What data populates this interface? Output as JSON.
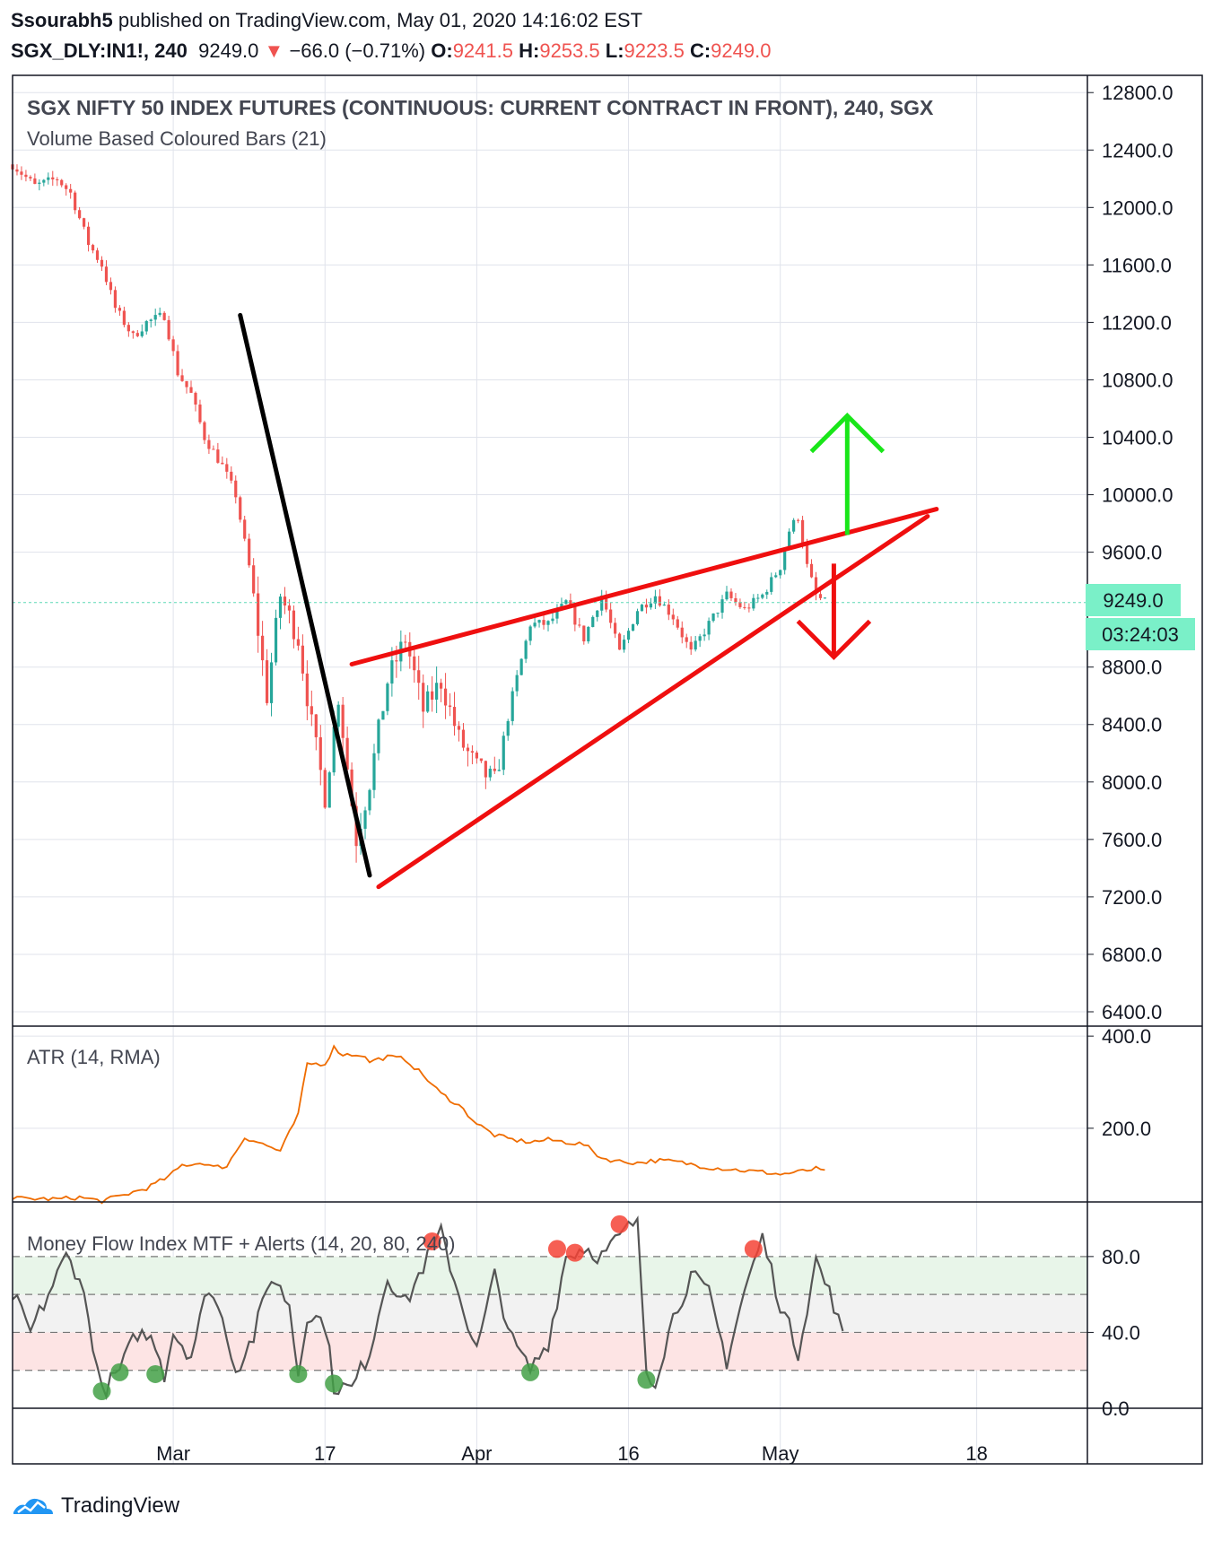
{
  "header": {
    "author": "Ssourabh5",
    "published_text": "published on TradingView.com, May 01, 2020 14:16:02 EST",
    "symbol": "SGX_DLY:IN1!, 240",
    "last": "9249.0",
    "change": "−66.0 (−0.71%)",
    "o_label": "O:",
    "o_value": "9241.5",
    "h_label": "H:",
    "h_value": "9253.5",
    "l_label": "L:",
    "l_value": "9223.5",
    "c_label": "C:",
    "c_value": "9249.0"
  },
  "footer": {
    "brand": "TradingView"
  },
  "colors": {
    "up_candle": "#26a69a",
    "down_candle": "#ef5350",
    "wedge": "#ef0f0f",
    "trendline": "#000000",
    "arrow_up": "#19e619",
    "arrow_down": "#ef0f0f",
    "atr": "#ef6c00",
    "mfi": "#555555",
    "grid": "#e0e3eb"
  },
  "chart_data": [
    {
      "type": "candlestick",
      "title": "SGX NIFTY 50 INDEX FUTURES (CONTINUOUS: CURRENT CONTRACT IN FRONT), 240, SGX",
      "subtitle": "Volume Based Coloured Bars (21)",
      "x_tick_labels": [
        "Mar",
        "17",
        "Apr",
        "16",
        "May",
        "18"
      ],
      "y_ticks": [
        12800,
        12400,
        12000,
        11600,
        11200,
        10800,
        10400,
        10000,
        9600,
        8800,
        8400,
        8000,
        7600,
        7200,
        6800,
        6400
      ],
      "y_tick_labels": [
        "12800.0",
        "12400.0",
        "12000.0",
        "11600.0",
        "11200.0",
        "10800.0",
        "10400.0",
        "10000.0",
        "9600.0",
        "8800.0",
        "8400.0",
        "8000.0",
        "7600.0",
        "7200.0",
        "6800.0",
        "6400.0"
      ],
      "ylim": [
        6300,
        12920
      ],
      "price_badge": "9249.0",
      "price_badge_value": 9249,
      "countdown_badge": "03:24:03",
      "close_waypoints": [
        [
          0,
          12300
        ],
        [
          5,
          12150
        ],
        [
          10,
          12200
        ],
        [
          13,
          12100
        ],
        [
          17,
          11750
        ],
        [
          20,
          11600
        ],
        [
          23,
          11300
        ],
        [
          27,
          11100
        ],
        [
          30,
          11200
        ],
        [
          34,
          11250
        ],
        [
          37,
          10850
        ],
        [
          40,
          10700
        ],
        [
          43,
          10400
        ],
        [
          47,
          10200
        ],
        [
          50,
          10000
        ],
        [
          53,
          9500
        ],
        [
          57,
          8600
        ],
        [
          60,
          9300
        ],
        [
          64,
          9000
        ],
        [
          67,
          8400
        ],
        [
          70,
          7900
        ],
        [
          73,
          8600
        ],
        [
          77,
          7600
        ],
        [
          80,
          8000
        ],
        [
          84,
          8700
        ],
        [
          88,
          9000
        ],
        [
          92,
          8500
        ],
        [
          96,
          8700
        ],
        [
          100,
          8300
        ],
        [
          104,
          8100
        ],
        [
          108,
          8000
        ],
        [
          112,
          8600
        ],
        [
          116,
          9100
        ],
        [
          120,
          9100
        ],
        [
          124,
          9250
        ],
        [
          128,
          9000
        ],
        [
          132,
          9300
        ],
        [
          136,
          8900
        ],
        [
          140,
          9200
        ],
        [
          144,
          9300
        ],
        [
          148,
          9150
        ],
        [
          152,
          8900
        ],
        [
          156,
          9100
        ],
        [
          160,
          9300
        ],
        [
          164,
          9200
        ],
        [
          168,
          9300
        ],
        [
          172,
          9500
        ],
        [
          174,
          9750
        ],
        [
          176,
          9850
        ],
        [
          178,
          9500
        ],
        [
          180,
          9300
        ],
        [
          182,
          9249
        ]
      ],
      "drawings": {
        "trendline": {
          "from": [
            51,
            11250
          ],
          "to": [
            80,
            7350
          ]
        },
        "wedge_upper": {
          "from": [
            76,
            8820
          ],
          "to": [
            207,
            9900
          ]
        },
        "wedge_lower": {
          "from": [
            82,
            7270
          ],
          "to": [
            205,
            9850
          ]
        },
        "arrow_up": {
          "x": 187,
          "from": 9720,
          "to": 10550
        },
        "arrow_down": {
          "x": 184,
          "from": 9520,
          "to": 8870
        }
      }
    },
    {
      "type": "line",
      "title": "ATR (14, RMA)",
      "y_ticks": [
        400,
        200
      ],
      "y_tick_labels": [
        "400.0",
        "200.0"
      ],
      "ylim": [
        40,
        410
      ],
      "waypoints": [
        [
          0,
          48
        ],
        [
          10,
          46
        ],
        [
          15,
          50
        ],
        [
          20,
          42
        ],
        [
          25,
          55
        ],
        [
          30,
          70
        ],
        [
          35,
          95
        ],
        [
          38,
          120
        ],
        [
          43,
          125
        ],
        [
          45,
          115
        ],
        [
          48,
          118
        ],
        [
          52,
          180
        ],
        [
          55,
          170
        ],
        [
          60,
          150
        ],
        [
          64,
          230
        ],
        [
          66,
          340
        ],
        [
          70,
          340
        ],
        [
          72,
          375
        ],
        [
          74,
          360
        ],
        [
          78,
          360
        ],
        [
          80,
          345
        ],
        [
          84,
          355
        ],
        [
          88,
          350
        ],
        [
          92,
          315
        ],
        [
          96,
          275
        ],
        [
          100,
          250
        ],
        [
          104,
          210
        ],
        [
          108,
          185
        ],
        [
          112,
          175
        ],
        [
          116,
          170
        ],
        [
          120,
          175
        ],
        [
          124,
          170
        ],
        [
          128,
          165
        ],
        [
          132,
          135
        ],
        [
          136,
          128
        ],
        [
          140,
          125
        ],
        [
          144,
          130
        ],
        [
          148,
          128
        ],
        [
          152,
          122
        ],
        [
          156,
          115
        ],
        [
          160,
          112
        ],
        [
          164,
          108
        ],
        [
          168,
          105
        ],
        [
          172,
          100
        ],
        [
          176,
          105
        ],
        [
          180,
          112
        ],
        [
          182,
          105
        ]
      ]
    },
    {
      "type": "line",
      "title": "Money Flow Index MTF + Alerts (14, 20, 80, 240)",
      "y_ticks": [
        80,
        40,
        0
      ],
      "y_tick_labels": [
        "80.0",
        "40.0",
        "0.0"
      ],
      "ylim": [
        0,
        105
      ],
      "bands": {
        "overbought": 80,
        "upper_mid": 60,
        "lower_mid": 40,
        "oversold": 20
      },
      "waypoints": [
        [
          0,
          60
        ],
        [
          4,
          40
        ],
        [
          8,
          60
        ],
        [
          12,
          80
        ],
        [
          15,
          70
        ],
        [
          18,
          35
        ],
        [
          20,
          8
        ],
        [
          24,
          20
        ],
        [
          28,
          40
        ],
        [
          32,
          35
        ],
        [
          34,
          18
        ],
        [
          36,
          40
        ],
        [
          40,
          28
        ],
        [
          44,
          65
        ],
        [
          48,
          40
        ],
        [
          50,
          20
        ],
        [
          54,
          38
        ],
        [
          58,
          70
        ],
        [
          62,
          55
        ],
        [
          64,
          18
        ],
        [
          66,
          50
        ],
        [
          70,
          45
        ],
        [
          72,
          12
        ],
        [
          76,
          10
        ],
        [
          80,
          30
        ],
        [
          84,
          70
        ],
        [
          88,
          55
        ],
        [
          92,
          75
        ],
        [
          96,
          92
        ],
        [
          100,
          60
        ],
        [
          104,
          30
        ],
        [
          108,
          70
        ],
        [
          112,
          35
        ],
        [
          116,
          20
        ],
        [
          120,
          35
        ],
        [
          124,
          80
        ],
        [
          128,
          85
        ],
        [
          132,
          80
        ],
        [
          136,
          90
        ],
        [
          140,
          100
        ],
        [
          142,
          20
        ],
        [
          144,
          15
        ],
        [
          148,
          48
        ],
        [
          152,
          70
        ],
        [
          156,
          60
        ],
        [
          160,
          25
        ],
        [
          164,
          62
        ],
        [
          168,
          90
        ],
        [
          172,
          55
        ],
        [
          176,
          30
        ],
        [
          180,
          78
        ],
        [
          184,
          55
        ],
        [
          186,
          37
        ]
      ],
      "overbought_markers": [
        [
          94,
          88
        ],
        [
          122,
          84
        ],
        [
          126,
          82
        ],
        [
          136,
          97
        ],
        [
          166,
          84
        ]
      ],
      "oversold_markers": [
        [
          20,
          9
        ],
        [
          24,
          19
        ],
        [
          32,
          18
        ],
        [
          64,
          18
        ],
        [
          72,
          13
        ],
        [
          116,
          19
        ],
        [
          142,
          15
        ]
      ]
    }
  ]
}
